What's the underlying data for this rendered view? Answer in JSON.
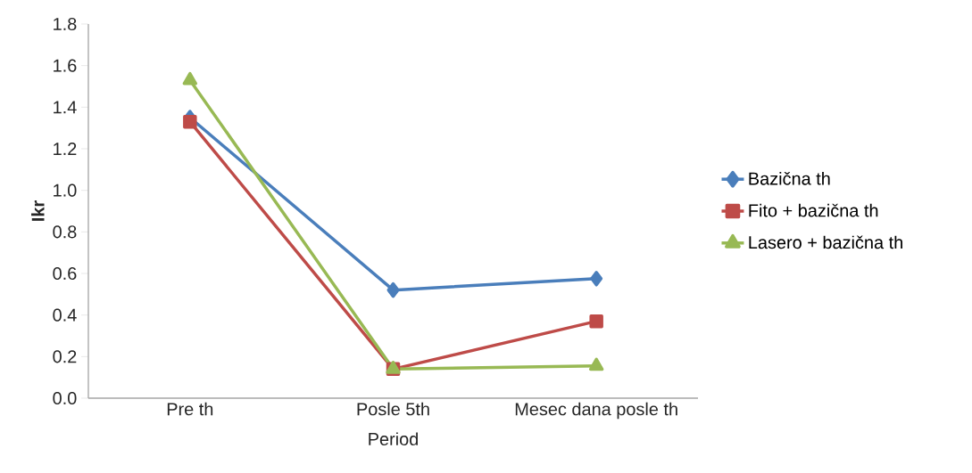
{
  "chart_data": {
    "type": "line",
    "xlabel": "Period",
    "ylabel": "Ikr",
    "categories": [
      "Pre th",
      "Posle 5th",
      "Mesec dana posle th"
    ],
    "series": [
      {
        "name": "Bazična th",
        "color": "#4a7ebb",
        "marker": "diamond",
        "values": [
          1.35,
          0.52,
          0.575
        ]
      },
      {
        "name": "Fito + bazična th",
        "color": "#be4b48",
        "marker": "square",
        "values": [
          1.33,
          0.14,
          0.37
        ]
      },
      {
        "name": "Lasero + bazična th",
        "color": "#98b954",
        "marker": "triangle",
        "values": [
          1.53,
          0.14,
          0.155
        ]
      }
    ],
    "ylim": [
      0,
      1.8
    ],
    "yticks": [
      {
        "value": 0,
        "label": "0.0"
      },
      0.2,
      0.4,
      0.6,
      0.8,
      {
        "value": 1,
        "label": "1.0"
      },
      1.2,
      1.4,
      1.6,
      1.8
    ],
    "grid": false,
    "legend": "right"
  }
}
